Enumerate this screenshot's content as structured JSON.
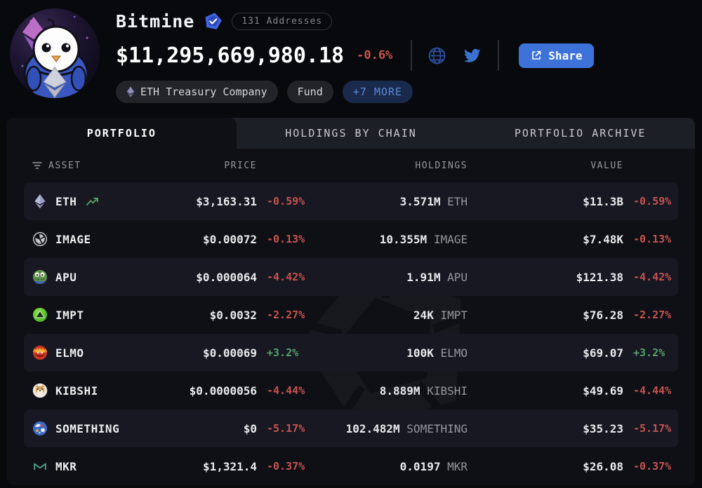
{
  "header": {
    "name": "Bitmine",
    "addresses_badge": "131 Addresses",
    "total_value": "$11,295,669,980.18",
    "total_change": "-0.6%",
    "share_label": "Share",
    "tags": {
      "primary": "ETH Treasury Company",
      "secondary": "Fund",
      "more": "+7 MORE"
    }
  },
  "tabs": [
    {
      "label": "PORTFOLIO",
      "active": true
    },
    {
      "label": "HOLDINGS BY CHAIN",
      "active": false
    },
    {
      "label": "PORTFOLIO ARCHIVE",
      "active": false
    }
  ],
  "table": {
    "columns": [
      "ASSET",
      "PRICE",
      "HOLDINGS",
      "VALUE"
    ],
    "rows": [
      {
        "name": "ETH",
        "icon": "eth-icon",
        "trend": true,
        "price": "$3,163.31",
        "price_change": "-0.59%",
        "holdings_amount": "3.571M",
        "holdings_symbol": "ETH",
        "value": "$11.3B",
        "value_change": "-0.59%"
      },
      {
        "name": "IMAGE",
        "icon": "image-icon",
        "trend": false,
        "price": "$0.00072",
        "price_change": "-0.13%",
        "holdings_amount": "10.355M",
        "holdings_symbol": "IMAGE",
        "value": "$7.48K",
        "value_change": "-0.13%"
      },
      {
        "name": "APU",
        "icon": "apu-icon",
        "trend": false,
        "price": "$0.000064",
        "price_change": "-4.42%",
        "holdings_amount": "1.91M",
        "holdings_symbol": "APU",
        "value": "$121.38",
        "value_change": "-4.42%"
      },
      {
        "name": "IMPT",
        "icon": "impt-icon",
        "trend": false,
        "price": "$0.0032",
        "price_change": "-2.27%",
        "holdings_amount": "24K",
        "holdings_symbol": "IMPT",
        "value": "$76.28",
        "value_change": "-2.27%"
      },
      {
        "name": "ELMO",
        "icon": "elmo-icon",
        "trend": false,
        "price": "$0.00069",
        "price_change": "+3.2%",
        "holdings_amount": "100K",
        "holdings_symbol": "ELMO",
        "value": "$69.07",
        "value_change": "+3.2%"
      },
      {
        "name": "KIBSHI",
        "icon": "kibshi-icon",
        "trend": false,
        "price": "$0.0000056",
        "price_change": "-4.44%",
        "holdings_amount": "8.889M",
        "holdings_symbol": "KIBSHI",
        "value": "$49.69",
        "value_change": "-4.44%"
      },
      {
        "name": "SOMETHING",
        "icon": "something-icon",
        "trend": false,
        "price": "$0",
        "price_change": "-5.17%",
        "holdings_amount": "102.482M",
        "holdings_symbol": "SOMETHING",
        "value": "$35.23",
        "value_change": "-5.17%"
      },
      {
        "name": "MKR",
        "icon": "mkr-icon",
        "trend": false,
        "price": "$1,321.4",
        "price_change": "-0.37%",
        "holdings_amount": "0.0197",
        "holdings_symbol": "MKR",
        "value": "$26.08",
        "value_change": "-0.37%"
      }
    ]
  },
  "colors": {
    "accent_blue": "#3d73d9",
    "negative_red": "#c4534f",
    "positive_green": "#55a06a",
    "badge_blue": "#4365e2"
  }
}
